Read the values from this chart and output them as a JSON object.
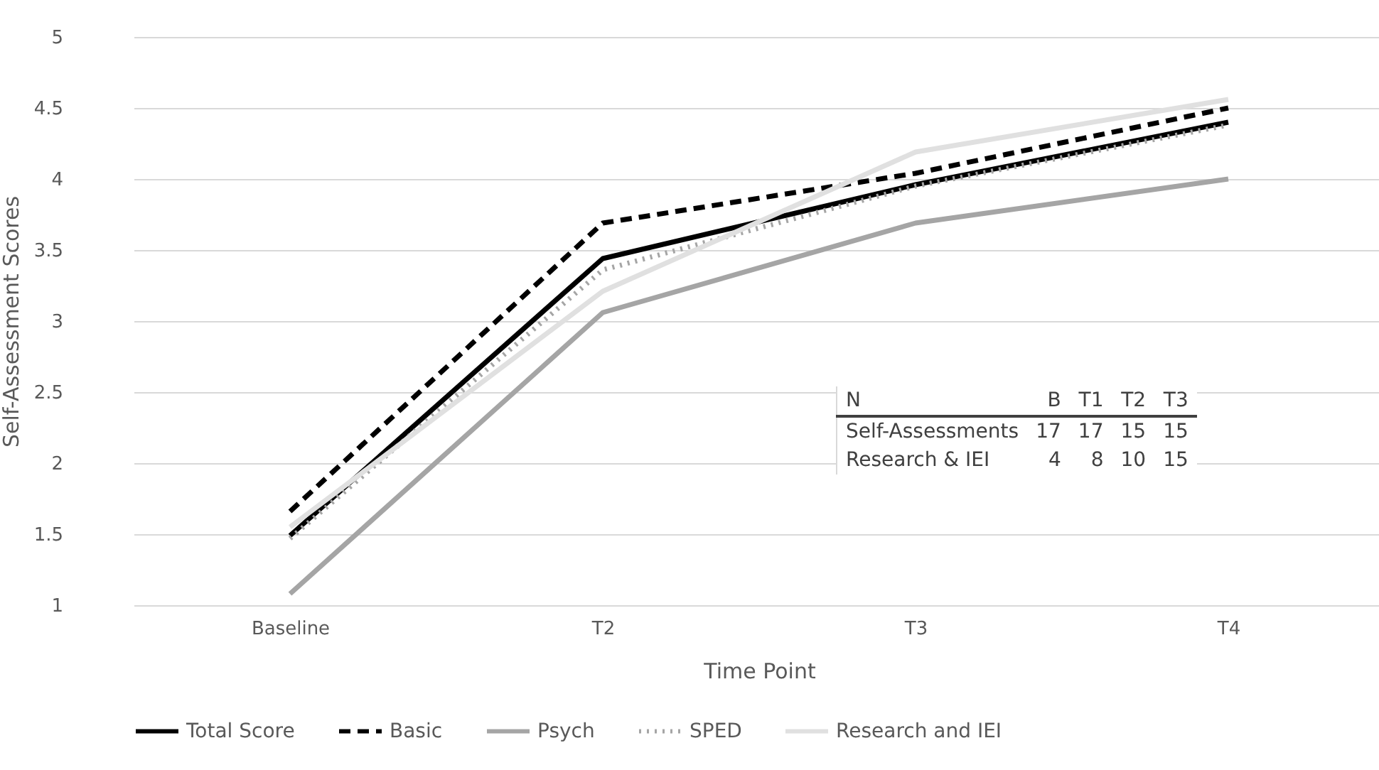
{
  "chart_data": {
    "type": "line",
    "xlabel": "Time Point",
    "ylabel": "Self-Assessment Scores",
    "categories": [
      "Baseline",
      "T2",
      "T3",
      "T4"
    ],
    "series": [
      {
        "name": "Total Score",
        "color": "#000000",
        "line_style": "solid",
        "values": [
          1.49,
          3.44,
          3.96,
          4.4
        ]
      },
      {
        "name": "Basic",
        "color": "#000000",
        "line_style": "dashed",
        "values": [
          1.66,
          3.69,
          4.04,
          4.5
        ]
      },
      {
        "name": "Psych",
        "color": "#a5a5a5",
        "line_style": "solid",
        "values": [
          1.08,
          3.06,
          3.69,
          4.0
        ]
      },
      {
        "name": "SPED",
        "color": "#a5a5a5",
        "line_style": "dotted",
        "values": [
          1.47,
          3.36,
          3.95,
          4.38
        ]
      },
      {
        "name": "Research and IEI",
        "color": "#e0e0e0",
        "line_style": "solid",
        "values": [
          1.55,
          3.21,
          4.19,
          4.56
        ]
      }
    ],
    "ylim": [
      1,
      5
    ],
    "yticks": [
      1,
      1.5,
      2,
      2.5,
      3,
      3.5,
      4,
      4.5,
      5
    ],
    "grid": "y",
    "legend": "bottom",
    "marker": "none",
    "annotations": [
      "N",
      "B",
      "T1",
      "T2",
      "T3",
      "Self-Assessments",
      "17",
      "17",
      "15",
      "15",
      "Research & IEI",
      "4",
      "8",
      "10",
      "15"
    ]
  }
}
